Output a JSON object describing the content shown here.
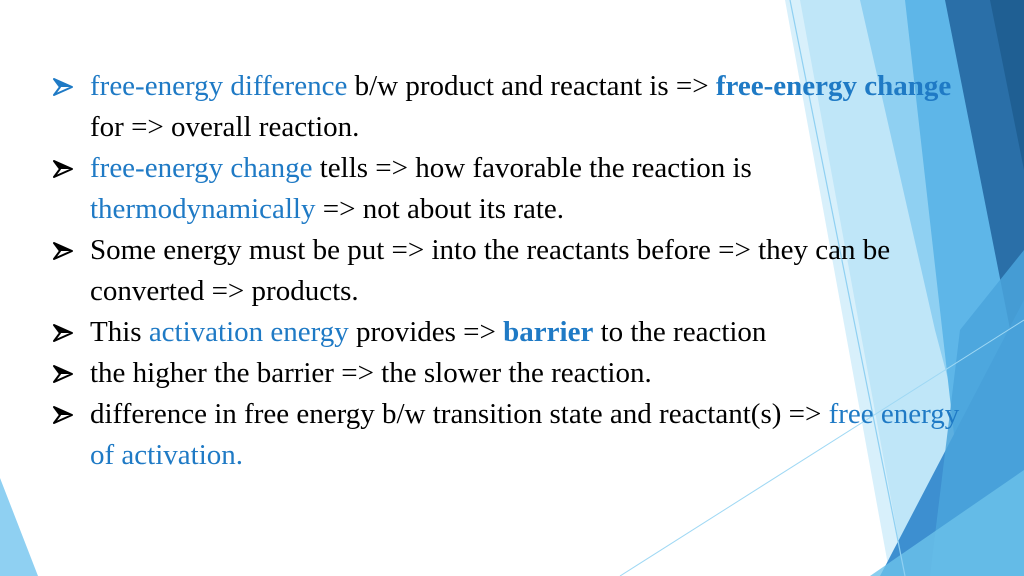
{
  "theme": {
    "accent": "#1f7ac5",
    "arrow_color": "#1f7ac5",
    "first_arrow_color": "#1f7ac5",
    "other_arrow_color": "#000000",
    "decoration_colors": [
      "#2a6fa8",
      "#3d8fd0",
      "#5eb6e8",
      "#8fd0f2",
      "#bfe6f8"
    ]
  },
  "bullets": [
    {
      "icon": "arrow-bullet-icon",
      "runs": [
        {
          "text": "free-energy difference",
          "style": "hl"
        },
        {
          "text": " b/w product and reactant is => ",
          "style": "normal"
        },
        {
          "text": "free-energy change",
          "style": "hlb"
        },
        {
          "text": " for => overall reaction.",
          "style": "normal"
        }
      ]
    },
    {
      "icon": "arrow-bullet-icon",
      "runs": [
        {
          "text": "free-energy change",
          "style": "hl"
        },
        {
          "text": " tells => how favorable the reaction is ",
          "style": "normal"
        },
        {
          "text": "thermodynamically",
          "style": "hl"
        },
        {
          "text": " => not about its rate.",
          "style": "normal"
        }
      ]
    },
    {
      "icon": "arrow-bullet-icon",
      "runs": [
        {
          "text": "Some energy must be put => into the reactants before => they can be converted => products.",
          "style": "normal"
        }
      ]
    },
    {
      "icon": "arrow-bullet-icon",
      "runs": [
        {
          "text": "This ",
          "style": "normal"
        },
        {
          "text": "activation energy",
          "style": "hl"
        },
        {
          "text": " provides => ",
          "style": "normal"
        },
        {
          "text": "barrier",
          "style": "hlb"
        },
        {
          "text": " to the reaction",
          "style": "normal"
        }
      ]
    },
    {
      "icon": "arrow-bullet-icon",
      "runs": [
        {
          "text": "the higher the barrier => the slower the reaction.",
          "style": "normal"
        }
      ]
    },
    {
      "icon": "arrow-bullet-icon",
      "runs": [
        {
          "text": "difference in free energy b/w transition state and reactant(s) => ",
          "style": "normal"
        },
        {
          "text": "free energy of activation.",
          "style": "hl"
        }
      ]
    }
  ]
}
